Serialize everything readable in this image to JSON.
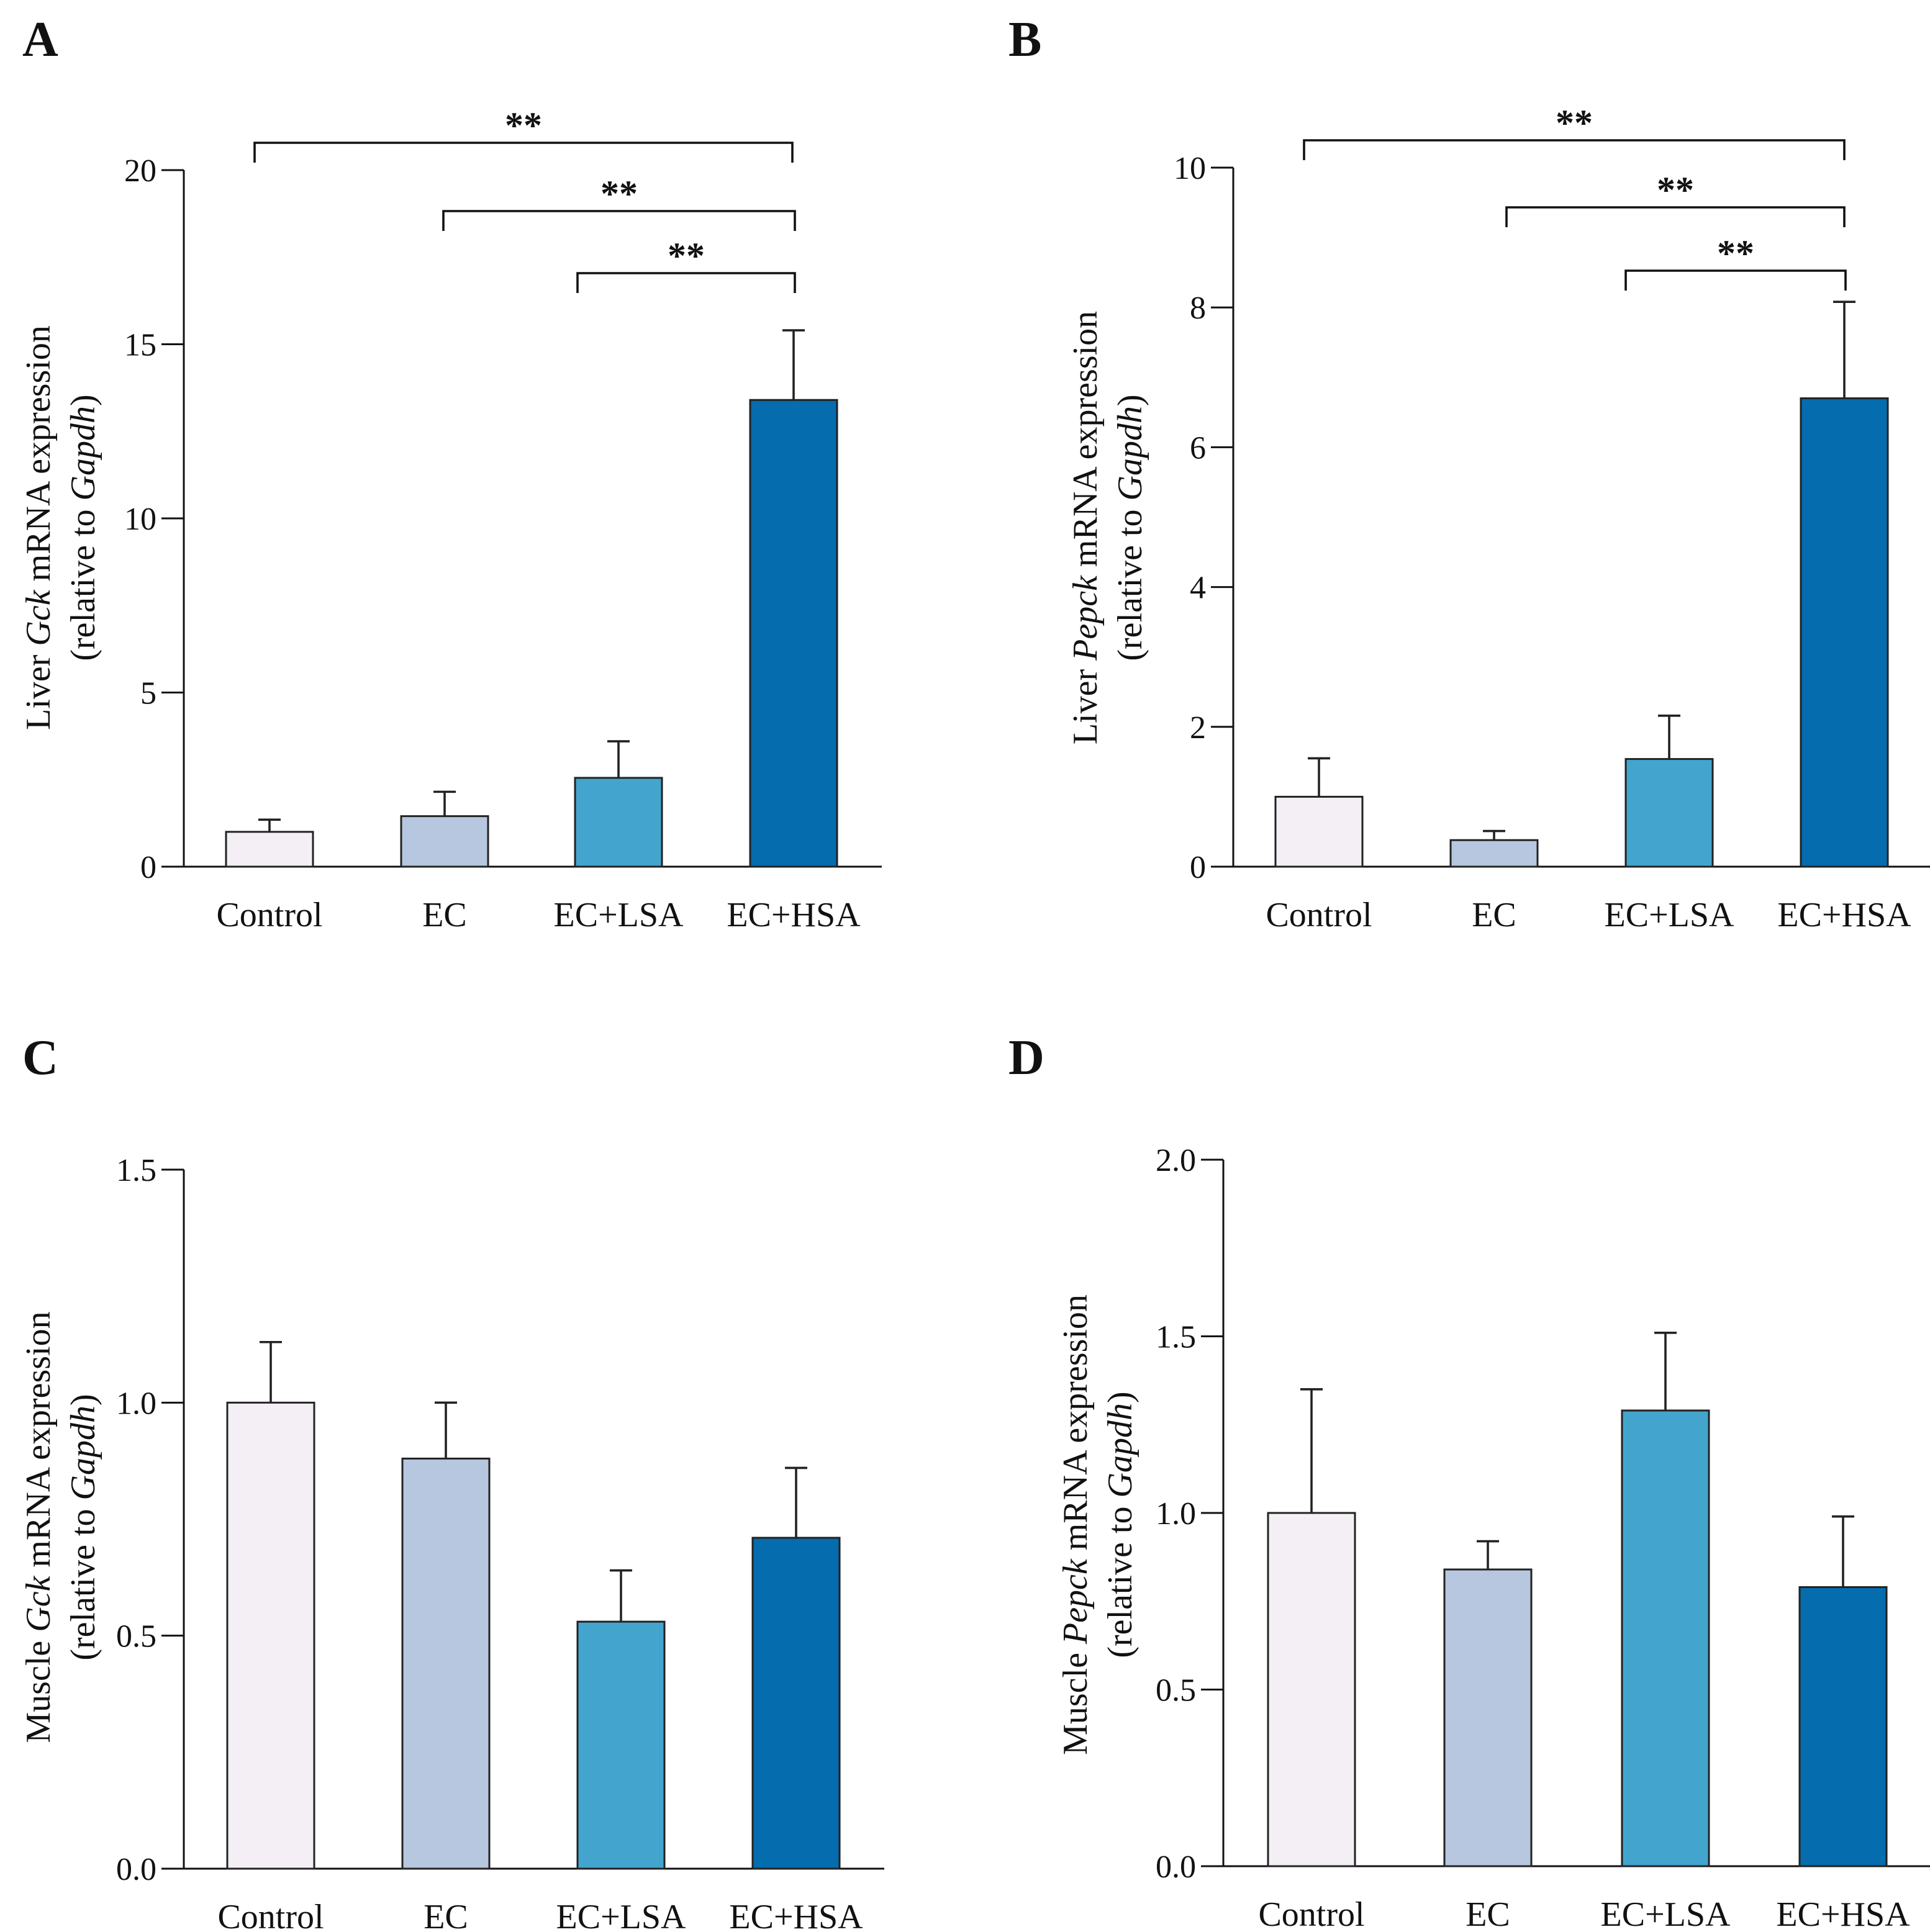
{
  "colors": {
    "Control": "#f3eff5",
    "EC": "#b6c7df",
    "EC+LSA": "#43a5cd",
    "EC+HSA": "#056cae",
    "outline": "#222222"
  },
  "chart_data": [
    {
      "panel": "A",
      "type": "bar",
      "categories": [
        "Control",
        "EC",
        "EC+LSA",
        "EC+HSA"
      ],
      "values": [
        1.0,
        1.45,
        2.55,
        13.4
      ],
      "errors": [
        0.35,
        0.7,
        1.05,
        2.0
      ],
      "ylim": [
        0,
        20
      ],
      "yticks": [
        "0",
        "5",
        "10",
        "15",
        "20"
      ],
      "ytick_values": [
        0,
        5,
        10,
        15,
        20
      ],
      "ylabel": {
        "line1_pre": "Liver ",
        "gene": "Gck",
        "line1_post": " mRNA expression",
        "line2_pre": "(relative to ",
        "ref": "Gapdh",
        "line2_post": ")"
      },
      "significance": [
        {
          "from": "Control",
          "to": "EC+HSA",
          "label": "**"
        },
        {
          "from": "EC",
          "to": "EC+HSA",
          "label": "**"
        },
        {
          "from": "EC+LSA",
          "to": "EC+HSA",
          "label": "**"
        }
      ]
    },
    {
      "panel": "B",
      "type": "bar",
      "categories": [
        "Control",
        "EC",
        "EC+LSA",
        "EC+HSA"
      ],
      "values": [
        1.0,
        0.38,
        1.54,
        6.7
      ],
      "errors": [
        0.55,
        0.13,
        0.62,
        1.38
      ],
      "ylim": [
        0,
        10
      ],
      "yticks": [
        "0",
        "2",
        "4",
        "6",
        "8",
        "10"
      ],
      "ytick_values": [
        0,
        2,
        4,
        6,
        8,
        10
      ],
      "ylabel": {
        "line1_pre": "Liver ",
        "gene": "Pepck",
        "line1_post": " mRNA expression",
        "line2_pre": "(relative to ",
        "ref": "Gapdh",
        "line2_post": ")"
      },
      "significance": [
        {
          "from": "Control",
          "to": "EC+HSA",
          "label": "**"
        },
        {
          "from": "EC",
          "to": "EC+HSA",
          "label": "**"
        },
        {
          "from": "EC+LSA",
          "to": "EC+HSA",
          "label": "**"
        }
      ]
    },
    {
      "panel": "C",
      "type": "bar",
      "categories": [
        "Control",
        "EC",
        "EC+LSA",
        "EC+HSA"
      ],
      "values": [
        1.0,
        0.88,
        0.53,
        0.71
      ],
      "errors": [
        0.13,
        0.12,
        0.11,
        0.15
      ],
      "ylim": [
        0,
        1.5
      ],
      "yticks": [
        "0.0",
        "0.5",
        "1.0",
        "1.5"
      ],
      "ytick_values": [
        0,
        0.5,
        1.0,
        1.5
      ],
      "ylabel": {
        "line1_pre": "Muscle ",
        "gene": "Gck",
        "line1_post": " mRNA expression",
        "line2_pre": "(relative to ",
        "ref": "Gapdh",
        "line2_post": ")"
      },
      "significance": []
    },
    {
      "panel": "D",
      "type": "bar",
      "categories": [
        "Control",
        "EC",
        "EC+LSA",
        "EC+HSA"
      ],
      "values": [
        1.0,
        0.84,
        1.29,
        0.79
      ],
      "errors": [
        0.35,
        0.08,
        0.22,
        0.2
      ],
      "ylim": [
        0,
        2.0
      ],
      "yticks": [
        "0.0",
        "0.5",
        "1.0",
        "1.5",
        "2.0"
      ],
      "ytick_values": [
        0,
        0.5,
        1.0,
        1.5,
        2.0
      ],
      "ylabel": {
        "line1_pre": "Muscle ",
        "gene": "Pepck",
        "line1_post": " mRNA expression",
        "line2_pre": "(relative to ",
        "ref": "Gapdh",
        "line2_post": ")"
      },
      "significance": []
    }
  ]
}
